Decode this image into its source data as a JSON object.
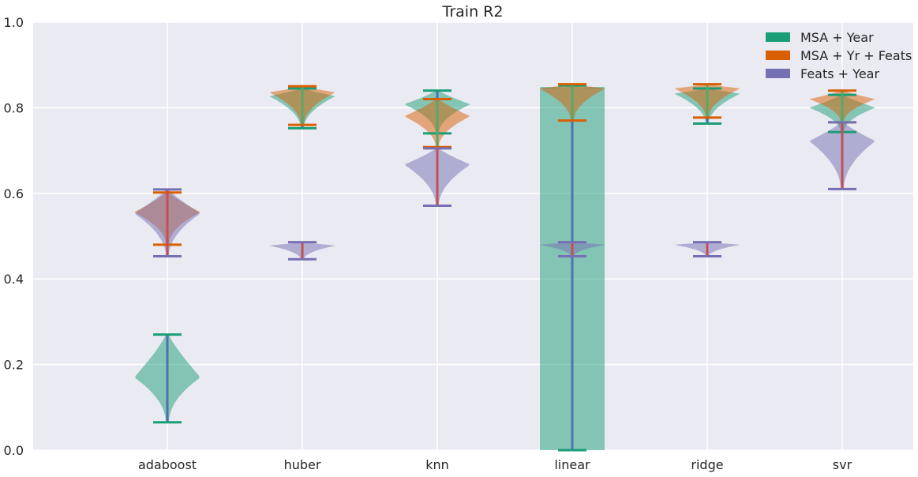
{
  "chart_data": {
    "type": "violin",
    "title": "Train R2",
    "xlabel": "",
    "ylabel": "",
    "ylim": [
      0,
      1
    ],
    "yticks": [
      "0.0",
      "0.2",
      "0.4",
      "0.6",
      "0.8",
      "1.0"
    ],
    "categories": [
      "adaboost",
      "huber",
      "knn",
      "linear",
      "ridge",
      "svr"
    ],
    "grid": true,
    "legend_position": "top-right",
    "series": [
      {
        "name": "MSA + Year",
        "color": "#1b9e77",
        "stat_line_color": "#4c72b0",
        "violins": [
          {
            "min": 0.065,
            "max": 0.27,
            "mode": 0.17
          },
          {
            "min": 0.752,
            "max": 0.845,
            "mode": 0.827
          },
          {
            "min": 0.74,
            "max": 0.84,
            "mode": 0.808
          },
          {
            "min": 0.0,
            "max": 0.852,
            "mode": 0.84,
            "fill_range": [
              0.0,
              0.848
            ]
          },
          {
            "min": 0.763,
            "max": 0.845,
            "mode": 0.833
          },
          {
            "min": 0.743,
            "max": 0.83,
            "mode": 0.8
          }
        ]
      },
      {
        "name": "MSA + Yr + Feats",
        "color": "#d95f02",
        "stat_line_color": "#55a868",
        "violins": [
          {
            "min": 0.48,
            "max": 0.602,
            "mode": 0.556
          },
          {
            "min": 0.76,
            "max": 0.85,
            "mode": 0.836
          },
          {
            "min": 0.708,
            "max": 0.82,
            "mode": 0.78
          },
          {
            "min": 0.77,
            "max": 0.855,
            "mode": 0.845
          },
          {
            "min": 0.777,
            "max": 0.855,
            "mode": 0.845
          },
          {
            "min": 0.766,
            "max": 0.84,
            "mode": 0.82
          }
        ]
      },
      {
        "name": "Feats + Year",
        "color": "#7570b3",
        "stat_line_color": "#c44e52",
        "violins": [
          {
            "min": 0.453,
            "max": 0.609,
            "mode": 0.553
          },
          {
            "min": 0.446,
            "max": 0.486,
            "mode": 0.478
          },
          {
            "min": 0.571,
            "max": 0.705,
            "mode": 0.667
          },
          {
            "min": 0.453,
            "max": 0.486,
            "mode": 0.48
          },
          {
            "min": 0.453,
            "max": 0.486,
            "mode": 0.48
          },
          {
            "min": 0.61,
            "max": 0.766,
            "mode": 0.722
          }
        ]
      }
    ]
  }
}
